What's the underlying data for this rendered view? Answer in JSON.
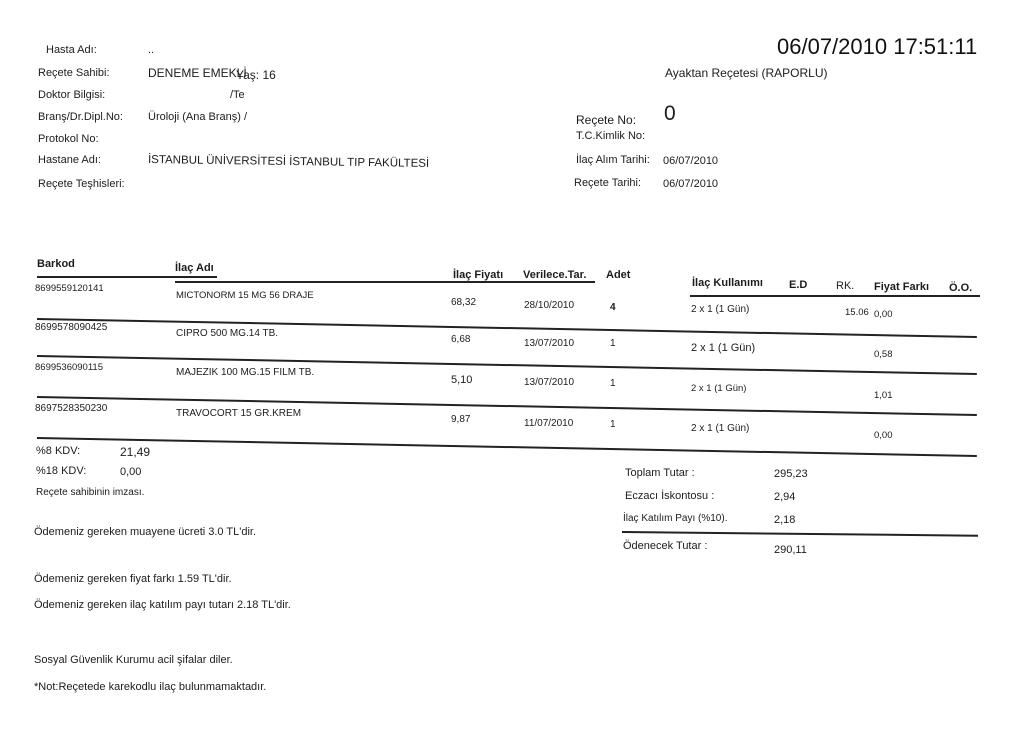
{
  "header": {
    "datetime": "06/07/2010 17:51:11",
    "doc_type": "Ayaktan Reçetesi (RAPORLU)"
  },
  "patient": {
    "hasta_adi_label": "Hasta Adı:",
    "hasta_adi_value": "..",
    "recete_sahibi_label": "Reçete Sahibi:",
    "recete_sahibi_value": "DENEME EMEKLİ",
    "yas": "Yaş: 16",
    "doktor_label": "Doktor Bilgisi:",
    "doktor_value": "/Te",
    "brans_label": "Branş/Dr.Dipl.No:",
    "brans_value": "Üroloji (Ana Branş) /",
    "protokol_label": "Protokol No:",
    "hastane_label": "Hastane Adı:",
    "hastane_value": "İSTANBUL ÜNİVERSİTESİ İSTANBUL TIP FAKÜLTESİ",
    "teshis_label": "Reçete Teşhisleri:"
  },
  "recete": {
    "no_label": "Reçete No:",
    "no_value": "0",
    "tc_label": "T.C.Kimlik No:",
    "alim_label": "İlaç Alım Tarihi:",
    "alim_value": "06/07/2010",
    "tarih_label": "Reçete Tarihi:",
    "tarih_value": "06/07/2010"
  },
  "table": {
    "columns": [
      "Barkod",
      "İlaç Adı",
      "İlaç Fiyatı",
      "Verilece.Tar.",
      "Adet",
      "İlaç Kullanımı",
      "E.D",
      "RK.",
      "Fiyat Farkı",
      "Ö.O."
    ],
    "rows": [
      {
        "barkod": "8699559120141",
        "ad": "MICTONORM 15 MG 56 DRAJE",
        "fiyat": "68,32",
        "tarih": "28/10/2010",
        "adet": "4",
        "kullanim": "2 x 1 (1 Gün)",
        "rk": "15.06",
        "fark": "0,00"
      },
      {
        "barkod": "8699578090425",
        "ad": "CIPRO 500 MG.14 TB.",
        "fiyat": "6,68",
        "tarih": "13/07/2010",
        "adet": "1",
        "kullanim": "2 x 1 (1 Gün)",
        "rk": "",
        "fark": "0,58"
      },
      {
        "barkod": "8699536090115",
        "ad": "MAJEZIK 100 MG.15 FILM TB.",
        "fiyat": "5,10",
        "tarih": "13/07/2010",
        "adet": "1",
        "kullanim": "2 x 1 (1 Gün)",
        "rk": "",
        "fark": "1,01"
      },
      {
        "barkod": "8697528350230",
        "ad": "TRAVOCORT 15 GR.KREM",
        "fiyat": "9,87",
        "tarih": "11/07/2010",
        "adet": "1",
        "kullanim": "2 x 1 (1 Gün)",
        "rk": "",
        "fark": "0,00"
      }
    ]
  },
  "tax": {
    "kdv8_label": "%8 KDV:",
    "kdv8_value": "21,49",
    "kdv18_label": "%18 KDV:",
    "kdv18_value": "0,00",
    "imza": "Reçete sahibinin imzası."
  },
  "totals": {
    "toplam_label": "Toplam Tutar   :",
    "toplam_value": "295,23",
    "iskonto_label": "Eczacı İskontosu :",
    "iskonto_value": "2,94",
    "katilim_label": "İlaç Katılım Payı (%10).",
    "katilim_value": "2,18",
    "odenecek_label": "Ödenecek Tutar  :",
    "odenecek_value": "290,11"
  },
  "notes": [
    "Ödemeniz gereken muayene ücreti 3.0 TL'dir.",
    "Ödemeniz gereken fiyat farkı 1.59 TL'dir.",
    "Ödemeniz gereken ilaç katılım payı tutarı 2.18 TL'dir.",
    "Sosyal Güvenlik Kurumu acil şifalar diler.",
    "*Not:Reçetede karekodlu ilaç bulunmamaktadır."
  ]
}
